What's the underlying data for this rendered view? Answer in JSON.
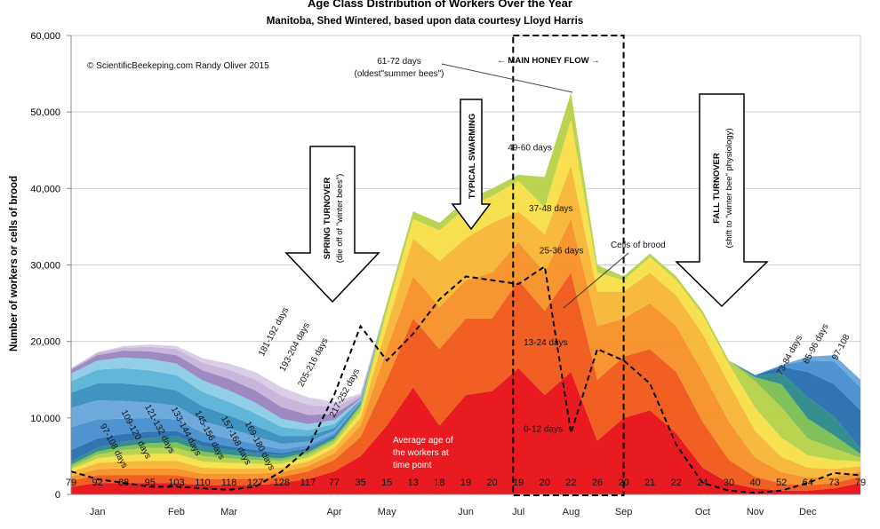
{
  "chart_data": {
    "type": "area",
    "title": "Age Class Distribution of Workers Over the Year",
    "subtitle": "Manitoba, Shed Wintered, based upon data courtesy Lloyd Harris",
    "copyright": "© ScientificBeekeping.com Randy Oliver 2015",
    "ylabel": "Number of workers or cells of brood",
    "ylim": [
      0,
      60000
    ],
    "yticks": [
      "0",
      "10,000",
      "20,000",
      "30,000",
      "40,000",
      "50,000",
      "60,000"
    ],
    "ytick_values": [
      0,
      10000,
      20000,
      30000,
      40000,
      50000,
      60000
    ],
    "months": [
      {
        "label": "Jan",
        "t": 1.0
      },
      {
        "label": "Feb",
        "t": 4.0
      },
      {
        "label": "Mar",
        "t": 6.0
      },
      {
        "label": "Apr",
        "t": 10.0
      },
      {
        "label": "May",
        "t": 12.0
      },
      {
        "label": "Jun",
        "t": 15.0
      },
      {
        "label": "Jul",
        "t": 17.0
      },
      {
        "label": "Aug",
        "t": 19.0
      },
      {
        "label": "Sep",
        "t": 21.0
      },
      {
        "label": "Oct",
        "t": 24.0
      },
      {
        "label": "Nov",
        "t": 26.0
      },
      {
        "label": "Dec",
        "t": 28.0
      }
    ],
    "x": [
      0,
      1,
      2,
      3,
      4,
      5,
      6,
      7,
      8,
      9,
      10,
      11,
      12,
      13,
      14,
      15,
      16,
      17,
      18,
      19,
      20,
      21,
      22,
      23,
      24,
      25,
      26,
      27,
      28,
      29,
      30
    ],
    "average_age_labels": [
      "79",
      "92",
      "88",
      "95",
      "103",
      "110",
      "118",
      "127",
      "128",
      "117",
      "77",
      "35",
      "15",
      "13",
      "18",
      "19",
      "20",
      "19",
      "20",
      "22",
      "26",
      "20",
      "21",
      "22",
      "24",
      "30",
      "40",
      "52",
      "64",
      "73",
      "79"
    ],
    "series": [
      {
        "name": "0-12 days",
        "color": "#e8141a",
        "values": [
          1000,
          1500,
          1500,
          1500,
          1500,
          1200,
          1200,
          1200,
          1500,
          2000,
          3000,
          5000,
          9000,
          14000,
          9000,
          13000,
          13500,
          16500,
          13000,
          16000,
          7000,
          10000,
          11000,
          8000,
          3500,
          1500,
          800,
          500,
          500,
          800,
          1500
        ]
      },
      {
        "name": "13-24 days",
        "color": "#f25a1c",
        "values": [
          800,
          1000,
          1000,
          1000,
          1000,
          800,
          800,
          800,
          800,
          1000,
          1500,
          2500,
          6000,
          9000,
          10000,
          10000,
          9500,
          11500,
          11000,
          13000,
          8000,
          8000,
          8000,
          8000,
          6000,
          3000,
          1500,
          900,
          700,
          700,
          800
        ]
      },
      {
        "name": "25-36 days",
        "color": "#f7922a",
        "values": [
          600,
          800,
          900,
          900,
          900,
          700,
          700,
          700,
          600,
          700,
          900,
          1500,
          4000,
          5500,
          5500,
          5000,
          6000,
          5000,
          5000,
          7000,
          7000,
          5000,
          6000,
          6000,
          6500,
          5000,
          2500,
          1500,
          1000,
          800,
          700
        ]
      },
      {
        "name": "37-48 days",
        "color": "#f8b838",
        "values": [
          500,
          800,
          900,
          1000,
          1000,
          800,
          700,
          700,
          600,
          600,
          700,
          1000,
          3000,
          5000,
          6000,
          5500,
          6500,
          4000,
          5000,
          7000,
          4500,
          3500,
          4000,
          4000,
          5000,
          5000,
          3500,
          2000,
          1300,
          1000,
          700
        ]
      },
      {
        "name": "49-60 days",
        "color": "#f7e04a",
        "values": [
          400,
          600,
          800,
          900,
          900,
          800,
          700,
          600,
          500,
          500,
          500,
          800,
          2000,
          2500,
          4000,
          4000,
          3500,
          4000,
          3500,
          6000,
          2500,
          1500,
          2000,
          2000,
          2500,
          2500,
          3000,
          2500,
          1600,
          1200,
          600
        ]
      },
      {
        "name": "61-72 days",
        "color": "#b8d24a",
        "values": [
          300,
          500,
          700,
          800,
          800,
          700,
          600,
          500,
          400,
          400,
          400,
          600,
          1000,
          1000,
          1000,
          1000,
          1000,
          800,
          4000,
          3500,
          1000,
          500,
          500,
          500,
          500,
          500,
          3500,
          4000,
          2200,
          1500,
          500
        ]
      },
      {
        "name": "73-84 days",
        "color": "#7bbf55",
        "values": [
          300,
          400,
          500,
          600,
          700,
          600,
          500,
          400,
          300,
          300,
          300,
          300,
          0,
          0,
          0,
          0,
          0,
          0,
          0,
          0,
          0,
          0,
          0,
          0,
          0,
          0,
          500,
          3000,
          2600,
          1700,
          500
        ]
      },
      {
        "name": "85-96 days",
        "color": "#2f8a8a",
        "values": [
          400,
          500,
          600,
          700,
          800,
          700,
          600,
          500,
          400,
          300,
          200,
          200,
          0,
          0,
          0,
          0,
          0,
          0,
          0,
          0,
          0,
          0,
          0,
          0,
          0,
          0,
          200,
          1500,
          2800,
          2500,
          700
        ]
      },
      {
        "name": "97-108 days",
        "color": "#2a6fb0",
        "values": [
          1500,
          1200,
          1000,
          800,
          700,
          600,
          500,
          400,
          300,
          200,
          200,
          100,
          0,
          0,
          0,
          0,
          0,
          0,
          0,
          0,
          0,
          0,
          0,
          0,
          0,
          0,
          100,
          800,
          3300,
          4200,
          5000
        ]
      },
      {
        "name": "109-120 days",
        "color": "#4a8fd0",
        "values": [
          3000,
          2500,
          2000,
          1800,
          1500,
          1200,
          1000,
          800,
          500,
          400,
          300,
          100,
          0,
          0,
          0,
          0,
          0,
          0,
          0,
          0,
          0,
          0,
          0,
          0,
          0,
          0,
          0,
          200,
          1500,
          3000,
          3000
        ]
      },
      {
        "name": "121-132 days",
        "color": "#6aa7dc",
        "values": [
          2500,
          2500,
          2300,
          2000,
          1800,
          1500,
          1300,
          1000,
          700,
          500,
          300,
          100,
          0,
          0,
          0,
          0,
          0,
          0,
          0,
          0,
          0,
          0,
          0,
          0,
          0,
          0,
          0,
          0,
          500,
          800,
          1000
        ]
      },
      {
        "name": "133-144 days",
        "color": "#3c8fbf",
        "values": [
          2000,
          2200,
          2300,
          2200,
          2000,
          1900,
          1700,
          1400,
          1000,
          700,
          400,
          100,
          0,
          0,
          0,
          0,
          0,
          0,
          0,
          0,
          0,
          0,
          0,
          0,
          0,
          0,
          0,
          0,
          0,
          0,
          0
        ]
      },
      {
        "name": "145-156 days",
        "color": "#5cb4d8",
        "values": [
          1500,
          1800,
          2000,
          2000,
          2000,
          1900,
          1800,
          1600,
          1200,
          800,
          500,
          100,
          0,
          0,
          0,
          0,
          0,
          0,
          0,
          0,
          0,
          0,
          0,
          0,
          0,
          0,
          0,
          0,
          0,
          0,
          0
        ]
      },
      {
        "name": "157-168 days",
        "color": "#8ccde6",
        "values": [
          1000,
          1200,
          1400,
          1500,
          1500,
          1500,
          1500,
          1400,
          1100,
          800,
          500,
          100,
          0,
          0,
          0,
          0,
          0,
          0,
          0,
          0,
          0,
          0,
          0,
          0,
          0,
          0,
          0,
          0,
          0,
          0,
          0
        ]
      },
      {
        "name": "169-180 days",
        "color": "#9a86c0",
        "values": [
          500,
          700,
          900,
          1000,
          1100,
          1300,
          1500,
          1600,
          1500,
          1200,
          800,
          200,
          0,
          0,
          0,
          0,
          0,
          0,
          0,
          0,
          0,
          0,
          0,
          0,
          0,
          0,
          0,
          0,
          0,
          0,
          0
        ]
      },
      {
        "name": "181-192 days",
        "color": "#c6b4da",
        "values": [
          200,
          300,
          400,
          600,
          800,
          1000,
          1200,
          1400,
          1500,
          1300,
          900,
          300,
          0,
          0,
          0,
          0,
          0,
          0,
          0,
          0,
          0,
          0,
          0,
          0,
          0,
          0,
          0,
          0,
          0,
          0,
          0
        ]
      },
      {
        "name": "193-204 days",
        "color": "#d8cce6",
        "values": [
          0,
          100,
          200,
          300,
          400,
          600,
          800,
          1000,
          1100,
          1000,
          700,
          200,
          0,
          0,
          0,
          0,
          0,
          0,
          0,
          0,
          0,
          0,
          0,
          0,
          0,
          0,
          0,
          0,
          0,
          0,
          0
        ]
      }
    ],
    "brood_line": {
      "name": "Cells of brood",
      "values": [
        3000,
        2000,
        1500,
        1000,
        1000,
        800,
        600,
        1000,
        3000,
        6000,
        13000,
        22000,
        17500,
        21000,
        25500,
        28500,
        28000,
        27500,
        29800,
        8000,
        19000,
        17500,
        14500,
        6500,
        1500,
        500,
        200,
        500,
        1500,
        2800,
        2500
      ]
    },
    "age_labels": [
      {
        "text": "97-108 days",
        "t": 1.1,
        "v": 9000,
        "rot": 62
      },
      {
        "text": "109-120 days",
        "t": 1.9,
        "v": 10800,
        "rot": 62
      },
      {
        "text": "121-132 days",
        "t": 2.8,
        "v": 11500,
        "rot": 62
      },
      {
        "text": "133-144 days",
        "t": 3.8,
        "v": 11200,
        "rot": 62
      },
      {
        "text": "145-156 days",
        "t": 4.7,
        "v": 10700,
        "rot": 62
      },
      {
        "text": "157-168 days",
        "t": 5.7,
        "v": 10000,
        "rot": 62
      },
      {
        "text": "169-180 days",
        "t": 6.6,
        "v": 9300,
        "rot": 62
      },
      {
        "text": "181-192 days",
        "t": 7.3,
        "v": 18000,
        "rot": -62
      },
      {
        "text": "193-204 days",
        "t": 8.1,
        "v": 16000,
        "rot": -62
      },
      {
        "text": "205-216 days",
        "t": 8.8,
        "v": 14000,
        "rot": -62
      },
      {
        "text": "217-252 days",
        "t": 10.0,
        "v": 10000,
        "rot": -62
      },
      {
        "text": "0-12 days",
        "t": 17.2,
        "v": 8200,
        "rot": 0
      },
      {
        "text": "13-24 days",
        "t": 17.2,
        "v": 19500,
        "rot": 0
      },
      {
        "text": "25-36 days",
        "t": 17.8,
        "v": 31500,
        "rot": 0
      },
      {
        "text": "37-48 days",
        "t": 17.4,
        "v": 37000,
        "rot": 0
      },
      {
        "text": "49-60 days",
        "t": 16.6,
        "v": 45000,
        "rot": 0
      },
      {
        "text": "73-84 days",
        "t": 27.0,
        "v": 15500,
        "rot": -62
      },
      {
        "text": "85-96 days",
        "t": 28.0,
        "v": 17000,
        "rot": -62
      },
      {
        "text": "97-108",
        "t": 29.1,
        "v": 17500,
        "rot": -62
      }
    ],
    "annotations": {
      "oldest_line1": "61-72 days",
      "oldest_line2": "(oldest\"summer bees\")",
      "brood_label": "Cells of brood",
      "avg_line1": "Average age of",
      "avg_line2": "the workers at",
      "avg_line3": "time point",
      "honey_flow": "← MAIN HONEY FLOW →",
      "spring_line1": "SPRING TURNOVER",
      "spring_line2": "(die off of \"winter bees\")",
      "swarming": "TYPICAL SWARMING",
      "fall_line1": "FALL TURNOVER",
      "fall_line2": "(shift to \"winter bee\" physiology)"
    },
    "honey_flow_range": [
      16.8,
      21.0
    ],
    "grid": true
  }
}
